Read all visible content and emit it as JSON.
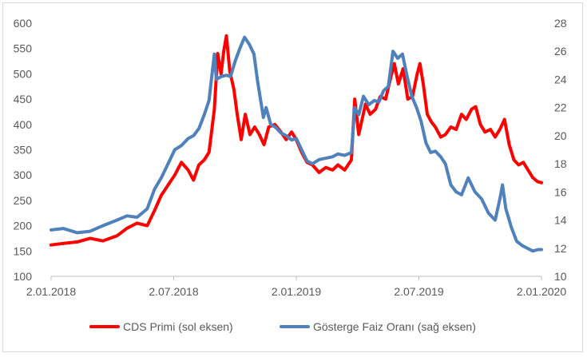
{
  "chart_data": {
    "type": "line",
    "x_ticks": [
      "2.01.2018",
      "2.07.2018",
      "2.01.2019",
      "2.07.2019",
      "2.01.2020"
    ],
    "x_range": [
      "2018-01-02",
      "2020-01-02"
    ],
    "y_left": {
      "range": [
        100,
        600
      ],
      "ticks": [
        "100",
        "150",
        "200",
        "250",
        "300",
        "350",
        "400",
        "450",
        "500",
        "550",
        "600"
      ]
    },
    "y_right": {
      "range": [
        10,
        28
      ],
      "ticks": [
        "10",
        "12",
        "14",
        "16",
        "18",
        "20",
        "22",
        "24",
        "26",
        "28"
      ]
    },
    "grid": false,
    "legend_position": "bottom",
    "series": [
      {
        "name": "CDS Primi (sol eksen)",
        "axis": "left",
        "color": "#ff0000",
        "points": [
          [
            "2018-01-02",
            162
          ],
          [
            "2018-01-20",
            165
          ],
          [
            "2018-02-10",
            168
          ],
          [
            "2018-03-01",
            175
          ],
          [
            "2018-03-20",
            170
          ],
          [
            "2018-04-10",
            180
          ],
          [
            "2018-04-25",
            195
          ],
          [
            "2018-05-10",
            205
          ],
          [
            "2018-05-25",
            200
          ],
          [
            "2018-06-05",
            230
          ],
          [
            "2018-06-15",
            260
          ],
          [
            "2018-06-25",
            280
          ],
          [
            "2018-07-05",
            300
          ],
          [
            "2018-07-15",
            325
          ],
          [
            "2018-07-25",
            310
          ],
          [
            "2018-08-02",
            290
          ],
          [
            "2018-08-10",
            320
          ],
          [
            "2018-08-18",
            330
          ],
          [
            "2018-08-25",
            345
          ],
          [
            "2018-09-02",
            430
          ],
          [
            "2018-09-07",
            540
          ],
          [
            "2018-09-12",
            500
          ],
          [
            "2018-09-16",
            545
          ],
          [
            "2018-09-20",
            575
          ],
          [
            "2018-09-25",
            505
          ],
          [
            "2018-10-01",
            470
          ],
          [
            "2018-10-06",
            420
          ],
          [
            "2018-10-12",
            370
          ],
          [
            "2018-10-18",
            420
          ],
          [
            "2018-10-25",
            380
          ],
          [
            "2018-11-01",
            395
          ],
          [
            "2018-11-08",
            380
          ],
          [
            "2018-11-15",
            360
          ],
          [
            "2018-11-22",
            395
          ],
          [
            "2018-12-01",
            400
          ],
          [
            "2018-12-10",
            385
          ],
          [
            "2018-12-18",
            370
          ],
          [
            "2018-12-26",
            385
          ],
          [
            "2019-01-02",
            370
          ],
          [
            "2019-01-10",
            345
          ],
          [
            "2019-01-18",
            325
          ],
          [
            "2019-01-26",
            320
          ],
          [
            "2019-02-05",
            305
          ],
          [
            "2019-02-15",
            315
          ],
          [
            "2019-02-25",
            310
          ],
          [
            "2019-03-05",
            320
          ],
          [
            "2019-03-15",
            310
          ],
          [
            "2019-03-25",
            330
          ],
          [
            "2019-03-30",
            450
          ],
          [
            "2019-04-05",
            380
          ],
          [
            "2019-04-10",
            410
          ],
          [
            "2019-04-15",
            440
          ],
          [
            "2019-04-22",
            420
          ],
          [
            "2019-04-30",
            430
          ],
          [
            "2019-05-07",
            455
          ],
          [
            "2019-05-15",
            450
          ],
          [
            "2019-05-22",
            490
          ],
          [
            "2019-05-28",
            520
          ],
          [
            "2019-06-03",
            480
          ],
          [
            "2019-06-10",
            510
          ],
          [
            "2019-06-17",
            450
          ],
          [
            "2019-06-24",
            455
          ],
          [
            "2019-07-01",
            500
          ],
          [
            "2019-07-05",
            520
          ],
          [
            "2019-07-10",
            480
          ],
          [
            "2019-07-16",
            420
          ],
          [
            "2019-07-22",
            405
          ],
          [
            "2019-07-28",
            395
          ],
          [
            "2019-08-05",
            375
          ],
          [
            "2019-08-12",
            380
          ],
          [
            "2019-08-20",
            395
          ],
          [
            "2019-08-28",
            390
          ],
          [
            "2019-09-05",
            420
          ],
          [
            "2019-09-12",
            410
          ],
          [
            "2019-09-20",
            430
          ],
          [
            "2019-09-26",
            435
          ],
          [
            "2019-10-03",
            400
          ],
          [
            "2019-10-10",
            385
          ],
          [
            "2019-10-18",
            390
          ],
          [
            "2019-10-25",
            375
          ],
          [
            "2019-11-01",
            390
          ],
          [
            "2019-11-08",
            410
          ],
          [
            "2019-11-15",
            360
          ],
          [
            "2019-11-22",
            330
          ],
          [
            "2019-11-29",
            320
          ],
          [
            "2019-12-06",
            325
          ],
          [
            "2019-12-13",
            310
          ],
          [
            "2019-12-20",
            295
          ],
          [
            "2019-12-27",
            287
          ],
          [
            "2020-01-02",
            285
          ]
        ]
      },
      {
        "name": "Gösterge Faiz Oranı (sağ eksen)",
        "axis": "right",
        "color": "#4f81bd",
        "points": [
          [
            "2018-01-02",
            13.3
          ],
          [
            "2018-01-20",
            13.4
          ],
          [
            "2018-02-10",
            13.1
          ],
          [
            "2018-03-01",
            13.2
          ],
          [
            "2018-03-20",
            13.6
          ],
          [
            "2018-04-10",
            14.0
          ],
          [
            "2018-04-25",
            14.3
          ],
          [
            "2018-05-10",
            14.2
          ],
          [
            "2018-05-25",
            14.8
          ],
          [
            "2018-06-05",
            16.2
          ],
          [
            "2018-06-15",
            17.0
          ],
          [
            "2018-06-25",
            18.0
          ],
          [
            "2018-07-05",
            19.0
          ],
          [
            "2018-07-15",
            19.3
          ],
          [
            "2018-07-25",
            19.8
          ],
          [
            "2018-08-02",
            20.0
          ],
          [
            "2018-08-10",
            20.5
          ],
          [
            "2018-08-18",
            21.5
          ],
          [
            "2018-08-25",
            22.5
          ],
          [
            "2018-09-02",
            25.8
          ],
          [
            "2018-09-05",
            24.0
          ],
          [
            "2018-09-12",
            24.2
          ],
          [
            "2018-09-20",
            24.3
          ],
          [
            "2018-09-26",
            24.2
          ],
          [
            "2018-10-03",
            25.3
          ],
          [
            "2018-10-10",
            26.2
          ],
          [
            "2018-10-17",
            27.0
          ],
          [
            "2018-10-24",
            26.5
          ],
          [
            "2018-10-31",
            25.8
          ],
          [
            "2018-11-05",
            24.0
          ],
          [
            "2018-11-10",
            22.5
          ],
          [
            "2018-11-14",
            21.3
          ],
          [
            "2018-11-18",
            22.0
          ],
          [
            "2018-11-25",
            20.8
          ],
          [
            "2018-12-02",
            20.6
          ],
          [
            "2018-12-10",
            20.2
          ],
          [
            "2018-12-18",
            20.0
          ],
          [
            "2018-12-26",
            19.7
          ],
          [
            "2019-01-02",
            19.8
          ],
          [
            "2019-01-10",
            19.0
          ],
          [
            "2019-01-18",
            18.2
          ],
          [
            "2019-01-26",
            18.0
          ],
          [
            "2019-02-05",
            18.3
          ],
          [
            "2019-02-15",
            18.4
          ],
          [
            "2019-02-25",
            18.5
          ],
          [
            "2019-03-05",
            18.7
          ],
          [
            "2019-03-15",
            18.6
          ],
          [
            "2019-03-25",
            18.8
          ],
          [
            "2019-03-30",
            22.0
          ],
          [
            "2019-04-05",
            21.5
          ],
          [
            "2019-04-12",
            22.8
          ],
          [
            "2019-04-20",
            22.2
          ],
          [
            "2019-04-28",
            22.5
          ],
          [
            "2019-05-05",
            22.4
          ],
          [
            "2019-05-12",
            23.2
          ],
          [
            "2019-05-19",
            23.5
          ],
          [
            "2019-05-26",
            26.0
          ],
          [
            "2019-06-02",
            25.5
          ],
          [
            "2019-06-09",
            25.8
          ],
          [
            "2019-06-16",
            24.2
          ],
          [
            "2019-06-23",
            22.8
          ],
          [
            "2019-06-30",
            22.0
          ],
          [
            "2019-07-07",
            21.0
          ],
          [
            "2019-07-14",
            19.5
          ],
          [
            "2019-07-21",
            18.8
          ],
          [
            "2019-07-28",
            18.9
          ],
          [
            "2019-08-05",
            18.5
          ],
          [
            "2019-08-12",
            18.0
          ],
          [
            "2019-08-20",
            16.5
          ],
          [
            "2019-08-28",
            16.0
          ],
          [
            "2019-09-05",
            15.8
          ],
          [
            "2019-09-15",
            17.0
          ],
          [
            "2019-09-25",
            16.0
          ],
          [
            "2019-10-05",
            15.5
          ],
          [
            "2019-10-15",
            14.5
          ],
          [
            "2019-10-25",
            14.0
          ],
          [
            "2019-11-01",
            15.5
          ],
          [
            "2019-11-05",
            16.5
          ],
          [
            "2019-11-10",
            14.8
          ],
          [
            "2019-11-18",
            13.5
          ],
          [
            "2019-11-26",
            12.5
          ],
          [
            "2019-12-04",
            12.2
          ],
          [
            "2019-12-12",
            12.0
          ],
          [
            "2019-12-20",
            11.8
          ],
          [
            "2019-12-28",
            11.9
          ],
          [
            "2020-01-02",
            11.9
          ]
        ]
      }
    ]
  }
}
